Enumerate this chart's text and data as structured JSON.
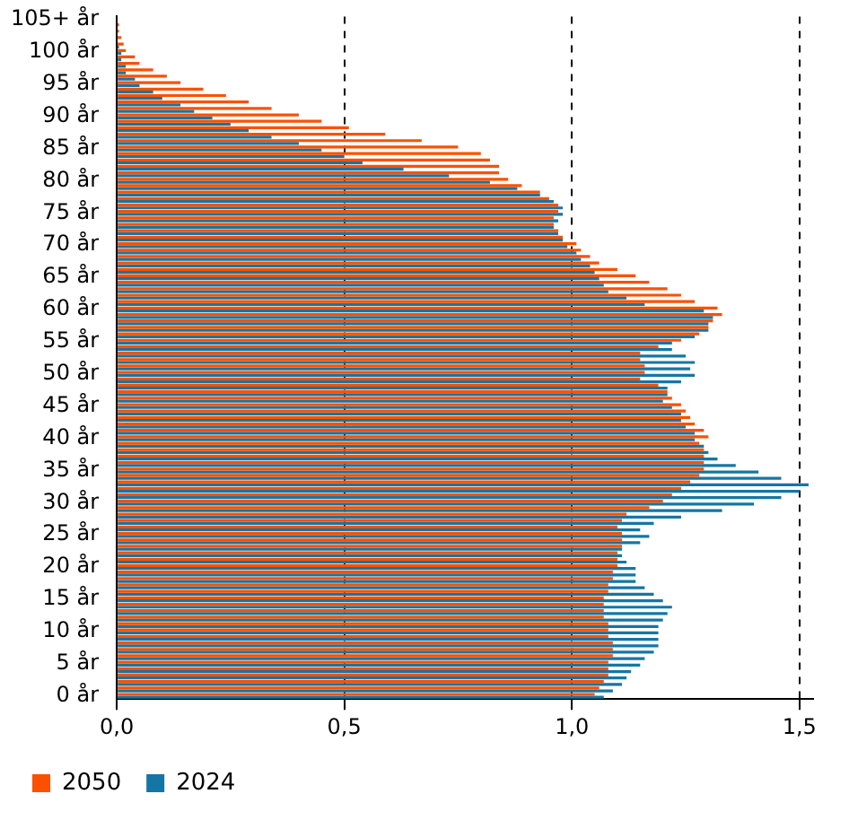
{
  "chart_data": {
    "type": "bar",
    "orientation": "horizontal",
    "categories": [
      "105+ år",
      null,
      null,
      null,
      null,
      "100 år",
      null,
      null,
      null,
      null,
      "95 år",
      null,
      null,
      null,
      null,
      "90 år",
      null,
      null,
      null,
      null,
      "85 år",
      null,
      null,
      null,
      null,
      "80 år",
      null,
      null,
      null,
      null,
      "75 år",
      null,
      null,
      null,
      null,
      "70 år",
      null,
      null,
      null,
      null,
      "65 år",
      null,
      null,
      null,
      null,
      "60 år",
      null,
      null,
      null,
      null,
      "55 år",
      null,
      null,
      null,
      null,
      "50 år",
      null,
      null,
      null,
      null,
      "45 år",
      null,
      null,
      null,
      null,
      "40 år",
      null,
      null,
      null,
      null,
      "35 år",
      null,
      null,
      null,
      null,
      "30 år",
      null,
      null,
      null,
      null,
      "25 år",
      null,
      null,
      null,
      null,
      "20 år",
      null,
      null,
      null,
      null,
      "15 år",
      null,
      null,
      null,
      null,
      "10 år",
      null,
      null,
      null,
      null,
      "5 år",
      null,
      null,
      null,
      null,
      "0 år"
    ],
    "series": [
      {
        "name": "2050",
        "color": "#fc5000",
        "values": [
          null,
          0.005,
          0.005,
          0.01,
          0.015,
          0.02,
          0.04,
          0.05,
          0.08,
          0.11,
          0.14,
          0.19,
          0.24,
          0.29,
          0.34,
          0.4,
          0.45,
          0.51,
          0.59,
          0.67,
          0.75,
          0.8,
          0.82,
          0.84,
          0.84,
          0.86,
          0.89,
          0.93,
          0.95,
          0.97,
          0.97,
          0.96,
          0.96,
          0.97,
          0.98,
          1.01,
          1.02,
          1.04,
          1.06,
          1.1,
          1.14,
          1.17,
          1.21,
          1.24,
          1.27,
          1.32,
          1.33,
          1.31,
          1.3,
          1.28,
          1.24,
          1.19,
          1.15,
          1.15,
          1.16,
          1.16,
          1.15,
          1.19,
          1.21,
          1.22,
          1.24,
          1.25,
          1.26,
          1.27,
          1.29,
          1.3,
          1.28,
          1.29,
          1.29,
          1.29,
          1.29,
          1.28,
          1.26,
          1.24,
          1.22,
          1.2,
          1.17,
          1.12,
          1.11,
          1.1,
          1.11,
          1.11,
          1.11,
          1.1,
          1.1,
          1.1,
          1.09,
          1.09,
          1.08,
          1.08,
          1.07,
          1.07,
          1.07,
          1.07,
          1.08,
          1.08,
          1.08,
          1.09,
          1.09,
          1.09,
          1.08,
          1.08,
          1.08,
          1.07,
          1.06,
          1.05
        ]
      },
      {
        "name": "2024",
        "color": "#1476a4",
        "values": [
          0,
          0,
          0,
          0,
          0.005,
          0.01,
          0.01,
          0.02,
          0.02,
          0.04,
          0.05,
          0.08,
          0.1,
          0.14,
          0.17,
          0.21,
          0.25,
          0.29,
          0.34,
          0.4,
          0.45,
          0.5,
          0.54,
          0.63,
          0.73,
          0.82,
          0.88,
          0.93,
          0.96,
          0.98,
          0.98,
          0.97,
          0.96,
          0.97,
          0.98,
          0.99,
          1.01,
          1.02,
          1.04,
          1.05,
          1.06,
          1.07,
          1.08,
          1.12,
          1.16,
          1.29,
          1.31,
          1.3,
          1.3,
          1.27,
          1.22,
          1.22,
          1.25,
          1.27,
          1.26,
          1.27,
          1.24,
          1.21,
          1.21,
          1.2,
          1.22,
          1.24,
          1.24,
          1.25,
          1.27,
          1.27,
          1.29,
          1.3,
          1.32,
          1.36,
          1.41,
          1.46,
          1.52,
          1.5,
          1.46,
          1.4,
          1.33,
          1.24,
          1.18,
          1.15,
          1.17,
          1.15,
          1.11,
          1.11,
          1.12,
          1.14,
          1.14,
          1.14,
          1.16,
          1.18,
          1.2,
          1.22,
          1.21,
          1.2,
          1.19,
          1.19,
          1.19,
          1.19,
          1.18,
          1.16,
          1.15,
          1.13,
          1.12,
          1.11,
          1.09,
          1.07
        ]
      }
    ],
    "xlim": [
      0,
      1.53
    ],
    "xticks": [
      {
        "value": 0,
        "label": "0,0"
      },
      {
        "value": 0.5,
        "label": "0,5"
      },
      {
        "value": 1,
        "label": "1,0"
      },
      {
        "value": 1.5,
        "label": "1,5"
      }
    ],
    "grid": "x",
    "legend": "bottom left"
  }
}
